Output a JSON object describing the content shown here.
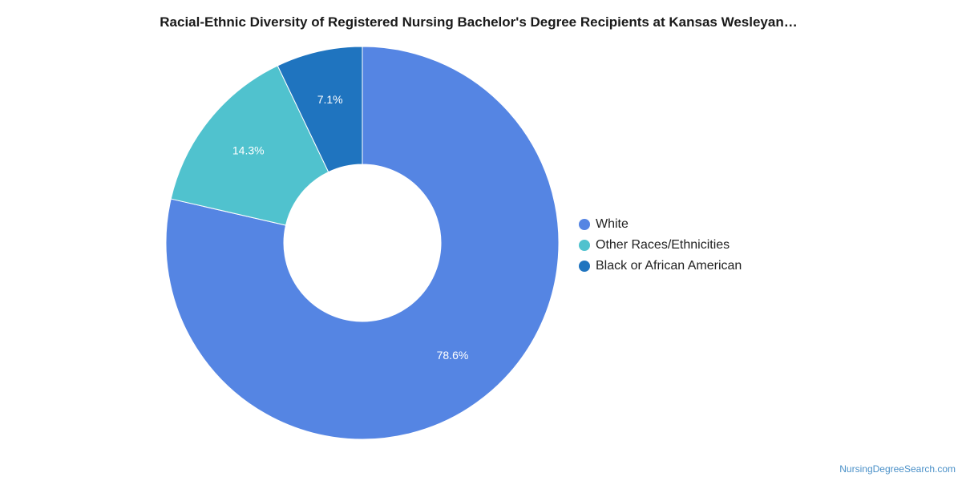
{
  "chart_data": {
    "type": "pie",
    "title": "Racial-Ethnic Diversity of Registered Nursing Bachelor's Degree Recipients at Kansas Wesleyan…",
    "donut": true,
    "legend_position": "right",
    "slices": [
      {
        "name": "White",
        "value": 78.6,
        "label": "78.6%",
        "color": "#5585e3"
      },
      {
        "name": "Other Races/Ethnicities",
        "value": 14.3,
        "label": "14.3%",
        "color": "#50c2ce"
      },
      {
        "name": "Black or African American",
        "value": 7.1,
        "label": "7.1%",
        "color": "#1f74bf"
      }
    ]
  },
  "footer": {
    "source": "NursingDegreeSearch.com"
  }
}
